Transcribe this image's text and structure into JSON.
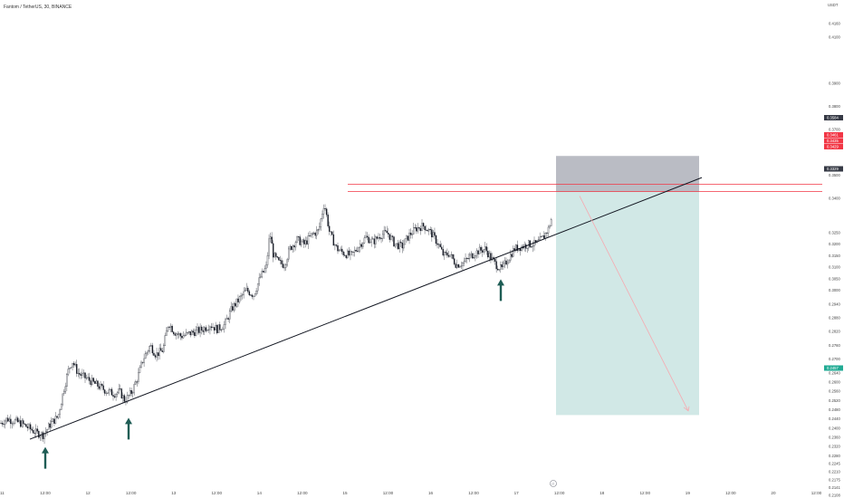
{
  "header": {
    "title": "Fantom / TetherUS, 30, BINANCE",
    "currency": "USDT"
  },
  "price_axis": {
    "labels": [
      "0.4160",
      "0.4100",
      "0.3900",
      "0.3800",
      "0.3700",
      "0.3500",
      "0.3400",
      "0.3250",
      "0.3200",
      "0.3150",
      "0.3100",
      "0.3050",
      "0.3000",
      "0.2940",
      "0.2880",
      "0.2820",
      "0.2760",
      "0.2700",
      "0.2640",
      "0.2600",
      "0.2560",
      "0.2520",
      "0.2480",
      "0.2440",
      "0.2400",
      "0.2360",
      "0.2320",
      "0.2280",
      "0.2245",
      "0.2210",
      "0.2175",
      "0.2141",
      "0.2108"
    ]
  },
  "price_tags": [
    {
      "value": "0.3584",
      "color": "#363a45"
    },
    {
      "value": "0.3461",
      "color": "#f23645"
    },
    {
      "value": "0.3435",
      "color": "#f23645"
    },
    {
      "value": "0.3429",
      "color": "#f23645"
    },
    {
      "value": "0.3329",
      "color": "#363a45"
    },
    {
      "value": "0.2457",
      "color": "#22ab94"
    }
  ],
  "time_axis": {
    "labels": [
      "11",
      "12:00",
      "12",
      "12:00",
      "13",
      "12:00",
      "14",
      "12:00",
      "15",
      "12:00",
      "16",
      "12:00",
      "17",
      "12:00",
      "18",
      "12:00",
      "19",
      "12:00",
      "20",
      "12:00"
    ]
  },
  "watermark_icon": "tradingview-logo-icon",
  "colors": {
    "candle": "#131722",
    "trendline": "#131722",
    "resistance": "#f23645",
    "stop_zone": "#b2b5be",
    "target_zone": "#d1e8e6",
    "projection": "#f7a9b0",
    "arrow": "#1f5d55"
  },
  "chart_data": {
    "type": "candlestick",
    "title": "Fantom / TetherUS, 30, BINANCE",
    "quote_currency": "USDT",
    "ylim": [
      0.2108,
      0.416
    ],
    "trendline": {
      "from": {
        "time": "11 12:00",
        "price": 0.2352
      },
      "to": {
        "time": "19 08:00",
        "price": 0.349
      }
    },
    "resistance_levels": [
      0.3461,
      0.3429
    ],
    "short_position": {
      "entry": 0.3429,
      "stop": 0.3584,
      "target": 0.2457
    },
    "last_price": 0.3329,
    "support_touches": [
      "11 12:00",
      "12 12:00",
      "16 22:00"
    ],
    "path": [
      [
        0,
        0.242
      ],
      [
        8,
        0.244
      ],
      [
        16,
        0.243
      ],
      [
        24,
        0.242
      ],
      [
        32,
        0.24
      ],
      [
        40,
        0.238
      ],
      [
        48,
        0.237
      ],
      [
        56,
        0.242
      ],
      [
        64,
        0.245
      ],
      [
        70,
        0.256
      ],
      [
        76,
        0.266
      ],
      [
        80,
        0.269
      ],
      [
        86,
        0.264
      ],
      [
        94,
        0.262
      ],
      [
        102,
        0.26
      ],
      [
        110,
        0.258
      ],
      [
        118,
        0.256
      ],
      [
        126,
        0.255
      ],
      [
        132,
        0.256
      ],
      [
        138,
        0.252
      ],
      [
        146,
        0.256
      ],
      [
        152,
        0.262
      ],
      [
        158,
        0.27
      ],
      [
        166,
        0.276
      ],
      [
        172,
        0.272
      ],
      [
        180,
        0.274
      ],
      [
        186,
        0.286
      ],
      [
        192,
        0.282
      ],
      [
        200,
        0.28
      ],
      [
        208,
        0.281
      ],
      [
        216,
        0.282
      ],
      [
        224,
        0.283
      ],
      [
        232,
        0.285
      ],
      [
        240,
        0.283
      ],
      [
        248,
        0.285
      ],
      [
        256,
        0.292
      ],
      [
        264,
        0.296
      ],
      [
        272,
        0.3
      ],
      [
        280,
        0.298
      ],
      [
        288,
        0.306
      ],
      [
        294,
        0.31
      ],
      [
        298,
        0.325
      ],
      [
        302,
        0.315
      ],
      [
        308,
        0.312
      ],
      [
        314,
        0.311
      ],
      [
        320,
        0.318
      ],
      [
        328,
        0.322
      ],
      [
        336,
        0.32
      ],
      [
        344,
        0.324
      ],
      [
        352,
        0.326
      ],
      [
        358,
        0.338
      ],
      [
        364,
        0.325
      ],
      [
        372,
        0.318
      ],
      [
        380,
        0.316
      ],
      [
        388,
        0.315
      ],
      [
        396,
        0.319
      ],
      [
        404,
        0.323
      ],
      [
        412,
        0.321
      ],
      [
        420,
        0.324
      ],
      [
        428,
        0.325
      ],
      [
        436,
        0.32
      ],
      [
        444,
        0.319
      ],
      [
        452,
        0.324
      ],
      [
        460,
        0.327
      ],
      [
        468,
        0.328
      ],
      [
        476,
        0.325
      ],
      [
        484,
        0.32
      ],
      [
        490,
        0.315
      ],
      [
        496,
        0.316
      ],
      [
        504,
        0.311
      ],
      [
        512,
        0.312
      ],
      [
        520,
        0.315
      ],
      [
        528,
        0.317
      ],
      [
        536,
        0.318
      ],
      [
        542,
        0.314
      ],
      [
        548,
        0.311
      ],
      [
        554,
        0.309
      ],
      [
        560,
        0.313
      ],
      [
        568,
        0.318
      ],
      [
        576,
        0.319
      ],
      [
        584,
        0.32
      ],
      [
        592,
        0.32
      ],
      [
        600,
        0.323
      ],
      [
        606,
        0.327
      ],
      [
        610,
        0.3329
      ]
    ]
  }
}
